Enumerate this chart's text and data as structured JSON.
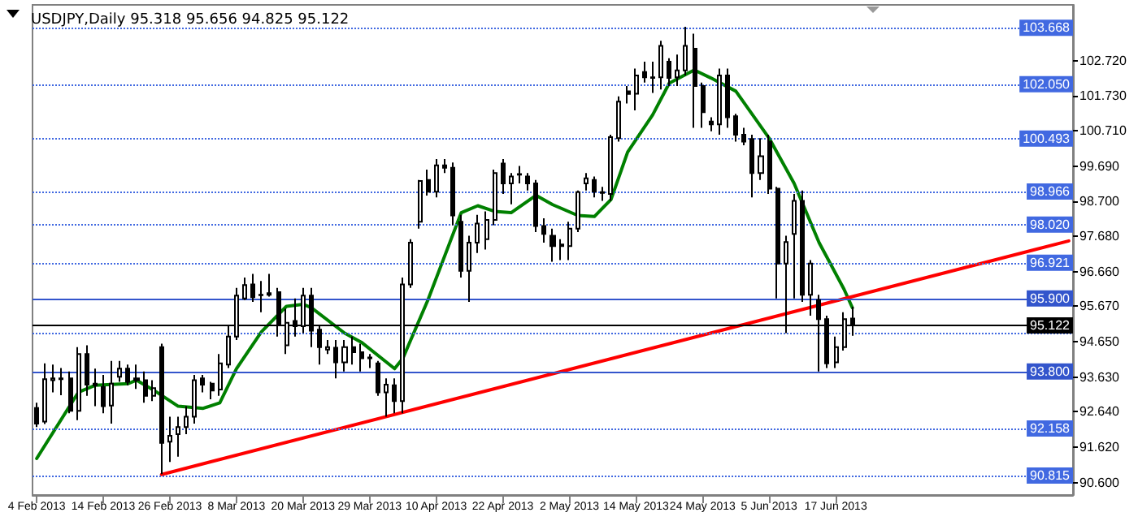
{
  "chart_data": {
    "type": "candlestick",
    "title": "USDJPY,Daily 95.318 95.656 94.825 95.122",
    "categories": [
      "4 Feb 2013",
      null,
      null,
      null,
      null,
      null,
      null,
      null,
      "14 Feb 2013",
      null,
      null,
      null,
      null,
      null,
      null,
      null,
      "26 Feb 2013",
      null,
      null,
      null,
      null,
      null,
      null,
      null,
      "8 Mar 2013",
      null,
      null,
      null,
      null,
      null,
      null,
      null,
      "20 Mar 2013",
      null,
      null,
      null,
      null,
      null,
      null,
      null,
      "29 Mar 2013",
      null,
      null,
      null,
      null,
      null,
      null,
      null,
      "10 Apr 2013",
      null,
      null,
      null,
      null,
      null,
      null,
      null,
      "22 Apr 2013",
      null,
      null,
      null,
      null,
      null,
      null,
      null,
      "2 May 2013",
      null,
      null,
      null,
      null,
      null,
      null,
      null,
      "14 May 2013",
      null,
      null,
      null,
      null,
      null,
      null,
      null,
      "24 May 2013",
      null,
      null,
      null,
      null,
      null,
      null,
      null,
      "5 Jun 2013",
      null,
      null,
      null,
      null,
      null,
      null,
      null,
      "17 Jun 2013",
      null,
      null,
      null,
      null,
      null,
      null,
      null,
      null,
      null,
      null,
      null,
      null,
      null,
      null,
      null,
      null,
      null,
      null,
      null,
      null,
      null,
      null,
      null,
      null,
      null,
      null,
      null,
      null
    ],
    "ohlc": [
      [
        92.75,
        92.9,
        92.2,
        92.3
      ],
      [
        92.36,
        94.03,
        92.29,
        93.58
      ],
      [
        93.55,
        94.0,
        93.2,
        93.6
      ],
      [
        93.6,
        93.9,
        93.12,
        93.58
      ],
      [
        93.6,
        93.8,
        92.6,
        92.67
      ],
      [
        92.67,
        94.5,
        92.4,
        94.3
      ],
      [
        94.3,
        94.55,
        93.1,
        93.42
      ],
      [
        93.4,
        93.88,
        92.8,
        93.45
      ],
      [
        93.35,
        93.7,
        92.6,
        92.8
      ],
      [
        92.82,
        94.1,
        92.3,
        93.45
      ],
      [
        93.65,
        94.1,
        93.5,
        93.88
      ],
      [
        93.88,
        94.0,
        93.4,
        93.5
      ],
      [
        93.6,
        94.0,
        93.3,
        93.55
      ],
      [
        93.55,
        93.8,
        92.9,
        93.1
      ],
      [
        93.1,
        93.55,
        92.95,
        93.32
      ],
      [
        94.5,
        94.6,
        90.85,
        91.75
      ],
      [
        91.78,
        92.5,
        91.2,
        91.95
      ],
      [
        92.0,
        92.5,
        91.35,
        92.2
      ],
      [
        92.2,
        92.8,
        92.0,
        92.5
      ],
      [
        92.5,
        93.7,
        92.3,
        93.55
      ],
      [
        93.6,
        93.7,
        93.2,
        93.42
      ],
      [
        93.45,
        93.5,
        93.0,
        93.25
      ],
      [
        93.28,
        94.3,
        93.1,
        94.03
      ],
      [
        94.0,
        95.1,
        93.9,
        94.8
      ],
      [
        94.8,
        96.2,
        94.7,
        95.98
      ],
      [
        95.9,
        96.5,
        95.85,
        96.28
      ],
      [
        96.3,
        96.6,
        95.8,
        95.93
      ],
      [
        95.99,
        96.4,
        95.5,
        96.0
      ],
      [
        96.05,
        96.6,
        95.95,
        96.0
      ],
      [
        96.08,
        96.2,
        94.8,
        95.17
      ],
      [
        94.55,
        95.6,
        94.3,
        95.2
      ],
      [
        95.25,
        95.9,
        94.8,
        95.1
      ],
      [
        95.1,
        96.2,
        94.9,
        95.98
      ],
      [
        95.98,
        96.2,
        94.5,
        94.97
      ],
      [
        95.0,
        95.1,
        94.0,
        94.5
      ],
      [
        94.43,
        94.7,
        94.3,
        94.5
      ],
      [
        94.48,
        94.7,
        93.6,
        94.06
      ],
      [
        94.06,
        94.7,
        93.8,
        94.5
      ],
      [
        94.5,
        94.8,
        94.0,
        94.35
      ],
      [
        94.35,
        94.6,
        93.8,
        94.18
      ],
      [
        94.18,
        94.3,
        93.9,
        94.2
      ],
      [
        94.03,
        94.1,
        93.1,
        93.2
      ],
      [
        93.2,
        93.6,
        92.5,
        93.42
      ],
      [
        93.4,
        93.6,
        92.6,
        92.95
      ],
      [
        92.95,
        96.5,
        92.6,
        96.3
      ],
      [
        96.3,
        97.6,
        96.2,
        97.5
      ],
      [
        98.1,
        99.3,
        97.9,
        99.27
      ],
      [
        99.3,
        99.6,
        98.85,
        98.96
      ],
      [
        98.96,
        99.9,
        98.8,
        99.72
      ],
      [
        99.72,
        99.9,
        99.5,
        99.65
      ],
      [
        99.65,
        99.8,
        98.0,
        98.28
      ],
      [
        98.1,
        98.3,
        96.5,
        96.69
      ],
      [
        96.69,
        97.7,
        95.8,
        97.5
      ],
      [
        97.5,
        98.3,
        97.2,
        98.05
      ],
      [
        97.6,
        98.4,
        97.3,
        98.15
      ],
      [
        98.15,
        99.6,
        98.0,
        99.5
      ],
      [
        99.77,
        99.9,
        98.9,
        99.2
      ],
      [
        99.2,
        99.5,
        98.6,
        99.4
      ],
      [
        99.45,
        99.7,
        99.2,
        99.47
      ],
      [
        99.4,
        99.5,
        99.0,
        99.2
      ],
      [
        99.2,
        99.3,
        97.8,
        97.98
      ],
      [
        97.98,
        98.2,
        97.5,
        97.75
      ],
      [
        97.7,
        97.9,
        96.95,
        97.4
      ],
      [
        97.45,
        97.6,
        97.0,
        97.4
      ],
      [
        97.4,
        98.1,
        97.0,
        97.9
      ],
      [
        97.9,
        99.0,
        97.8,
        98.95
      ],
      [
        99.2,
        99.5,
        99.0,
        99.35
      ],
      [
        99.3,
        99.4,
        98.8,
        98.97
      ],
      [
        98.95,
        99.1,
        98.7,
        98.93
      ],
      [
        98.9,
        100.6,
        98.7,
        100.53
      ],
      [
        100.5,
        101.7,
        100.4,
        101.55
      ],
      [
        101.85,
        102.0,
        101.5,
        101.77
      ],
      [
        101.78,
        102.5,
        101.3,
        102.3
      ],
      [
        102.4,
        102.7,
        102.1,
        102.25
      ],
      [
        102.23,
        102.7,
        101.8,
        102.25
      ],
      [
        102.25,
        103.3,
        101.9,
        103.15
      ],
      [
        102.7,
        102.8,
        102.0,
        102.23
      ],
      [
        102.25,
        102.9,
        102.0,
        102.45
      ],
      [
        102.45,
        103.7,
        102.3,
        103.15
      ],
      [
        103.07,
        103.5,
        100.8,
        102.0
      ],
      [
        102.0,
        102.1,
        100.8,
        101.25
      ],
      [
        100.98,
        101.1,
        100.7,
        100.9
      ],
      [
        100.9,
        102.5,
        100.6,
        102.3
      ],
      [
        102.3,
        102.5,
        100.8,
        101.1
      ],
      [
        101.13,
        101.2,
        100.4,
        100.6
      ],
      [
        100.6,
        100.8,
        100.3,
        100.4
      ],
      [
        100.48,
        100.6,
        98.8,
        99.5
      ],
      [
        99.5,
        100.5,
        99.3,
        99.98
      ],
      [
        100.4,
        100.6,
        98.9,
        99.05
      ],
      [
        99.05,
        99.1,
        95.9,
        96.9
      ],
      [
        96.9,
        97.7,
        94.9,
        97.52
      ],
      [
        97.75,
        98.9,
        95.9,
        98.7
      ],
      [
        98.7,
        99.0,
        95.8,
        96.0
      ],
      [
        96.0,
        97.0,
        95.4,
        96.9
      ],
      [
        95.85,
        96.0,
        93.8,
        95.3
      ],
      [
        95.3,
        95.4,
        93.9,
        94.03
      ],
      [
        94.06,
        94.8,
        93.9,
        94.5
      ],
      [
        94.5,
        95.5,
        94.4,
        95.3
      ],
      [
        95.318,
        95.656,
        94.825,
        95.122
      ],
      null,
      null,
      null,
      null,
      null,
      null,
      null,
      null,
      null,
      null,
      null,
      null,
      null,
      null,
      null,
      null,
      null,
      null,
      null,
      null,
      null,
      null,
      null,
      null,
      null,
      null
    ],
    "series": [
      {
        "type": "line",
        "color": "#008000",
        "values": [
          91.3,
          null,
          null,
          null,
          null,
          93.2,
          null,
          93.4,
          null,
          null,
          null,
          93.45,
          93.55,
          null,
          93.27,
          null,
          null,
          92.8,
          null,
          null,
          92.74,
          null,
          92.9,
          null,
          93.88,
          null,
          null,
          94.94,
          null,
          null,
          95.67,
          null,
          95.73,
          95.63,
          null,
          null,
          null,
          94.9,
          null,
          94.64,
          null,
          null,
          null,
          93.88,
          94.18,
          null,
          null,
          95.85,
          null,
          null,
          null,
          98.36,
          null,
          98.56,
          null,
          98.4,
          null,
          98.36,
          null,
          null,
          98.86,
          null,
          98.59,
          null,
          null,
          98.28,
          null,
          98.25,
          null,
          98.74,
          null,
          100.1,
          null,
          null,
          101.17,
          null,
          102.08,
          null,
          null,
          102.46,
          null,
          102.23,
          null,
          null,
          101.85,
          null,
          null,
          null,
          100.5,
          null,
          null,
          99.2,
          null,
          null,
          97.5,
          null,
          null,
          96.16,
          95.63,
          null,
          null,
          null,
          null,
          null,
          null,
          null,
          null,
          null,
          null,
          null,
          null,
          null,
          null,
          null,
          null,
          null,
          null,
          null,
          null,
          null,
          null,
          null,
          null,
          null,
          null
        ]
      },
      {
        "type": "line",
        "color": "#ff0000",
        "values": [
          null,
          null,
          null,
          null,
          null,
          null,
          null,
          null,
          null,
          null,
          null,
          null,
          null,
          null,
          null,
          90.84,
          null,
          null,
          null,
          null,
          null,
          null,
          null,
          null,
          null,
          null,
          null,
          null,
          null,
          null,
          null,
          null,
          null,
          null,
          null,
          null,
          null,
          null,
          null,
          null,
          null,
          null,
          null,
          null,
          null,
          null,
          null,
          null,
          null,
          null,
          null,
          null,
          null,
          null,
          null,
          null,
          null,
          null,
          null,
          null,
          null,
          null,
          null,
          null,
          null,
          null,
          null,
          null,
          null,
          null,
          null,
          null,
          null,
          null,
          null,
          null,
          null,
          null,
          null,
          null,
          null,
          null,
          null,
          null,
          null,
          null,
          null,
          null,
          null,
          null,
          null,
          null,
          null,
          null,
          null,
          null,
          null,
          null,
          null,
          null,
          null,
          null,
          null,
          null,
          null,
          null,
          null,
          null,
          null,
          null,
          null,
          null,
          null,
          null,
          null,
          null,
          null,
          null,
          null,
          null,
          null,
          null,
          null,
          null,
          97.55
        ]
      }
    ],
    "ylim": [
      90.25,
      104.33
    ],
    "yticks": [
      {
        "value": 102.72,
        "label": "102.720"
      },
      {
        "value": 101.73,
        "label": "101.730"
      },
      {
        "value": 100.71,
        "label": "100.710"
      },
      {
        "value": 99.69,
        "label": "99.690"
      },
      {
        "value": 98.7,
        "label": "98.700"
      },
      {
        "value": 97.68,
        "label": "97.680"
      },
      {
        "value": 96.66,
        "label": "96.660"
      },
      {
        "value": 95.67,
        "label": "95.670"
      },
      {
        "value": 94.65,
        "label": "94.650"
      },
      {
        "value": 93.63,
        "label": "93.630"
      },
      {
        "value": 92.64,
        "label": "92.640"
      },
      {
        "value": 91.62,
        "label": "91.620"
      },
      {
        "value": 90.6,
        "label": "90.600"
      }
    ],
    "ref_lines": [
      {
        "axis": "y",
        "value": 103.668,
        "label": "103.668",
        "color": "#4169e1",
        "line_style": "dotted"
      },
      {
        "axis": "y",
        "value": 102.05,
        "label": "102.050",
        "color": "#4169e1",
        "line_style": "dotted"
      },
      {
        "axis": "y",
        "value": 100.493,
        "label": "100.493",
        "color": "#4169e1",
        "line_style": "dotted"
      },
      {
        "axis": "y",
        "value": 98.966,
        "label": "98.966",
        "color": "#4169e1",
        "line_style": "dotted"
      },
      {
        "axis": "y",
        "value": 98.02,
        "label": "98.020",
        "color": "#4169e1",
        "line_style": "dotted"
      },
      {
        "axis": "y",
        "value": 96.921,
        "label": "96.921",
        "color": "#4169e1",
        "line_style": "dotted"
      },
      {
        "axis": "y",
        "value": 95.9,
        "label": "95.900",
        "color": "#3355cc",
        "line_style": "solid"
      },
      {
        "axis": "y",
        "value": 95.122,
        "label": "95.122",
        "color": "#000000",
        "line_style": "solid"
      },
      {
        "axis": "y",
        "value": 94.9,
        "label": null,
        "color": "#4169e1",
        "line_style": "dotted"
      },
      {
        "axis": "y",
        "value": 93.8,
        "label": "93.800",
        "color": "#3355cc",
        "line_style": "solid"
      },
      {
        "axis": "y",
        "value": 92.158,
        "label": "92.158",
        "color": "#4169e1",
        "line_style": "dotted"
      },
      {
        "axis": "y",
        "value": 90.815,
        "label": "90.815",
        "color": "#4169e1",
        "line_style": "dotted"
      }
    ],
    "grid": false,
    "marker": "none",
    "line_style": "solid"
  }
}
